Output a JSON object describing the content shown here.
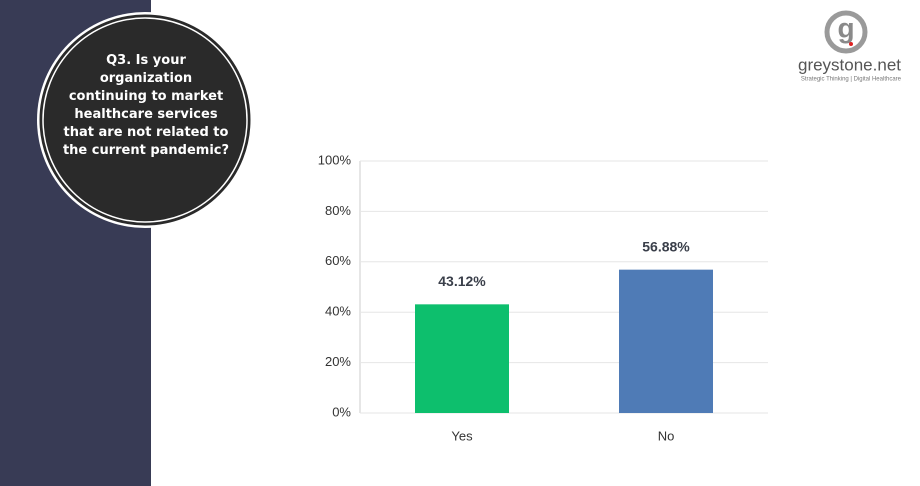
{
  "question": "Q3. Is your organization continuing to market healthcare services that are not related to the current pandemic?",
  "logo": {
    "mark": "g",
    "name": "greystone.net",
    "tagline": "Strategic Thinking | Digital Healthcare"
  },
  "chart_data": {
    "type": "bar",
    "categories": [
      "Yes",
      "No"
    ],
    "values": [
      43.12,
      56.88
    ],
    "value_labels": [
      "43.12%",
      "56.88%"
    ],
    "colors": [
      "#0dbf6d",
      "#4f7bb6"
    ],
    "ylim": [
      0,
      100
    ],
    "yticks": [
      {
        "value": 0,
        "label": "0%"
      },
      {
        "value": 20,
        "label": "20%"
      },
      {
        "value": 40,
        "label": "40%"
      },
      {
        "value": 60,
        "label": "60%"
      },
      {
        "value": 80,
        "label": "80%"
      },
      {
        "value": 100,
        "label": "100%"
      }
    ],
    "grid": true
  }
}
